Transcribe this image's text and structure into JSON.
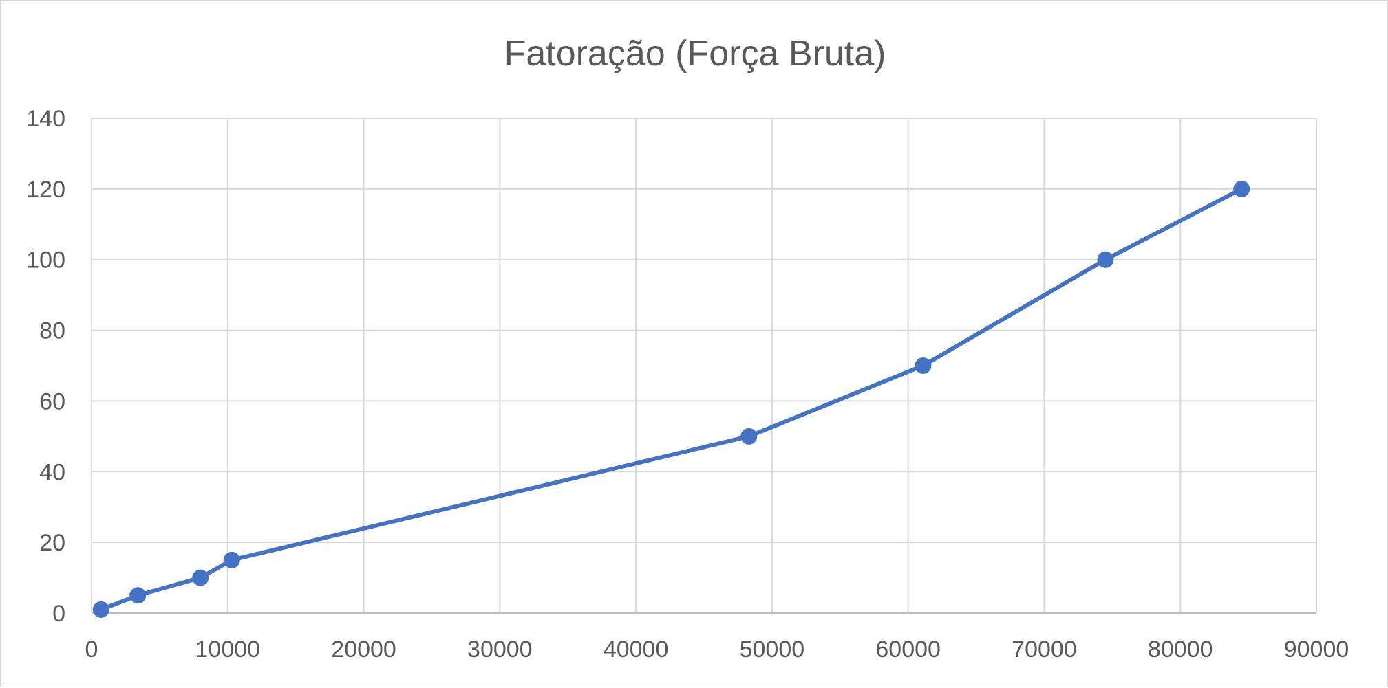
{
  "chart_data": {
    "type": "line",
    "title": "Fatoração (Força Bruta)",
    "xlabel": "",
    "ylabel": "",
    "xlim": [
      0,
      90000
    ],
    "ylim": [
      0,
      140
    ],
    "xticks": [
      "0",
      "10000",
      "20000",
      "30000",
      "40000",
      "50000",
      "60000",
      "70000",
      "80000",
      "90000"
    ],
    "yticks": [
      "0",
      "20",
      "40",
      "60",
      "80",
      "100",
      "120",
      "140"
    ],
    "grid": true,
    "legend": "none",
    "series": [
      {
        "color": "#4472c4",
        "x": [
          700,
          3400,
          8000,
          10300,
          48300,
          61100,
          74500,
          84500
        ],
        "y": [
          1,
          5,
          10,
          15,
          50,
          70,
          100,
          120
        ]
      }
    ]
  }
}
